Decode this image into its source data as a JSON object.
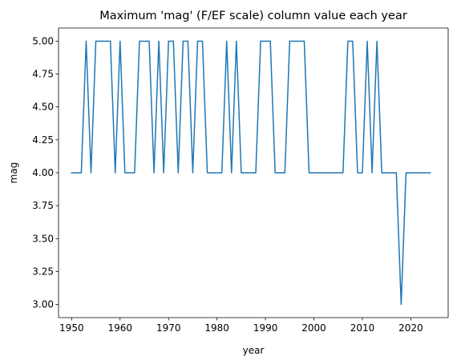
{
  "chart_data": {
    "type": "line",
    "title": "Maximum 'mag' (F/EF scale) column value each year",
    "xlabel": "year",
    "ylabel": "mag",
    "xlim": [
      1947.3,
      2027.7
    ],
    "ylim": [
      2.9,
      5.1
    ],
    "x_ticks": [
      1950,
      1960,
      1970,
      1980,
      1990,
      2000,
      2010,
      2020
    ],
    "y_ticks": [
      3.0,
      3.25,
      3.5,
      3.75,
      4.0,
      4.25,
      4.5,
      4.75,
      5.0
    ],
    "y_tick_labels": [
      "3.00",
      "3.25",
      "3.50",
      "3.75",
      "4.00",
      "4.25",
      "4.50",
      "4.75",
      "5.00"
    ],
    "grid": false,
    "series": [
      {
        "color": "#1f77b4",
        "x": [
          1950,
          1951,
          1952,
          1953,
          1954,
          1955,
          1956,
          1957,
          1958,
          1959,
          1960,
          1961,
          1962,
          1963,
          1964,
          1965,
          1966,
          1967,
          1968,
          1969,
          1970,
          1971,
          1972,
          1973,
          1974,
          1975,
          1976,
          1977,
          1978,
          1979,
          1980,
          1981,
          1982,
          1983,
          1984,
          1985,
          1986,
          1987,
          1988,
          1989,
          1990,
          1991,
          1992,
          1993,
          1994,
          1995,
          1996,
          1997,
          1998,
          1999,
          2000,
          2001,
          2002,
          2003,
          2004,
          2005,
          2006,
          2007,
          2008,
          2009,
          2010,
          2011,
          2012,
          2013,
          2014,
          2015,
          2016,
          2017,
          2018,
          2019,
          2020,
          2021,
          2022,
          2023,
          2024
        ],
        "y": [
          4,
          4,
          4,
          5,
          4,
          5,
          5,
          5,
          5,
          4,
          5,
          4,
          4,
          4,
          5,
          5,
          5,
          4,
          5,
          4,
          5,
          5,
          4,
          5,
          5,
          4,
          5,
          5,
          4,
          4,
          4,
          4,
          5,
          4,
          5,
          4,
          4,
          4,
          4,
          5,
          5,
          5,
          4,
          4,
          4,
          5,
          5,
          5,
          5,
          4,
          4,
          4,
          4,
          4,
          4,
          4,
          4,
          5,
          5,
          4,
          4,
          5,
          4,
          5,
          4,
          4,
          4,
          4,
          3,
          4,
          4,
          4,
          4,
          4,
          4
        ]
      }
    ]
  }
}
